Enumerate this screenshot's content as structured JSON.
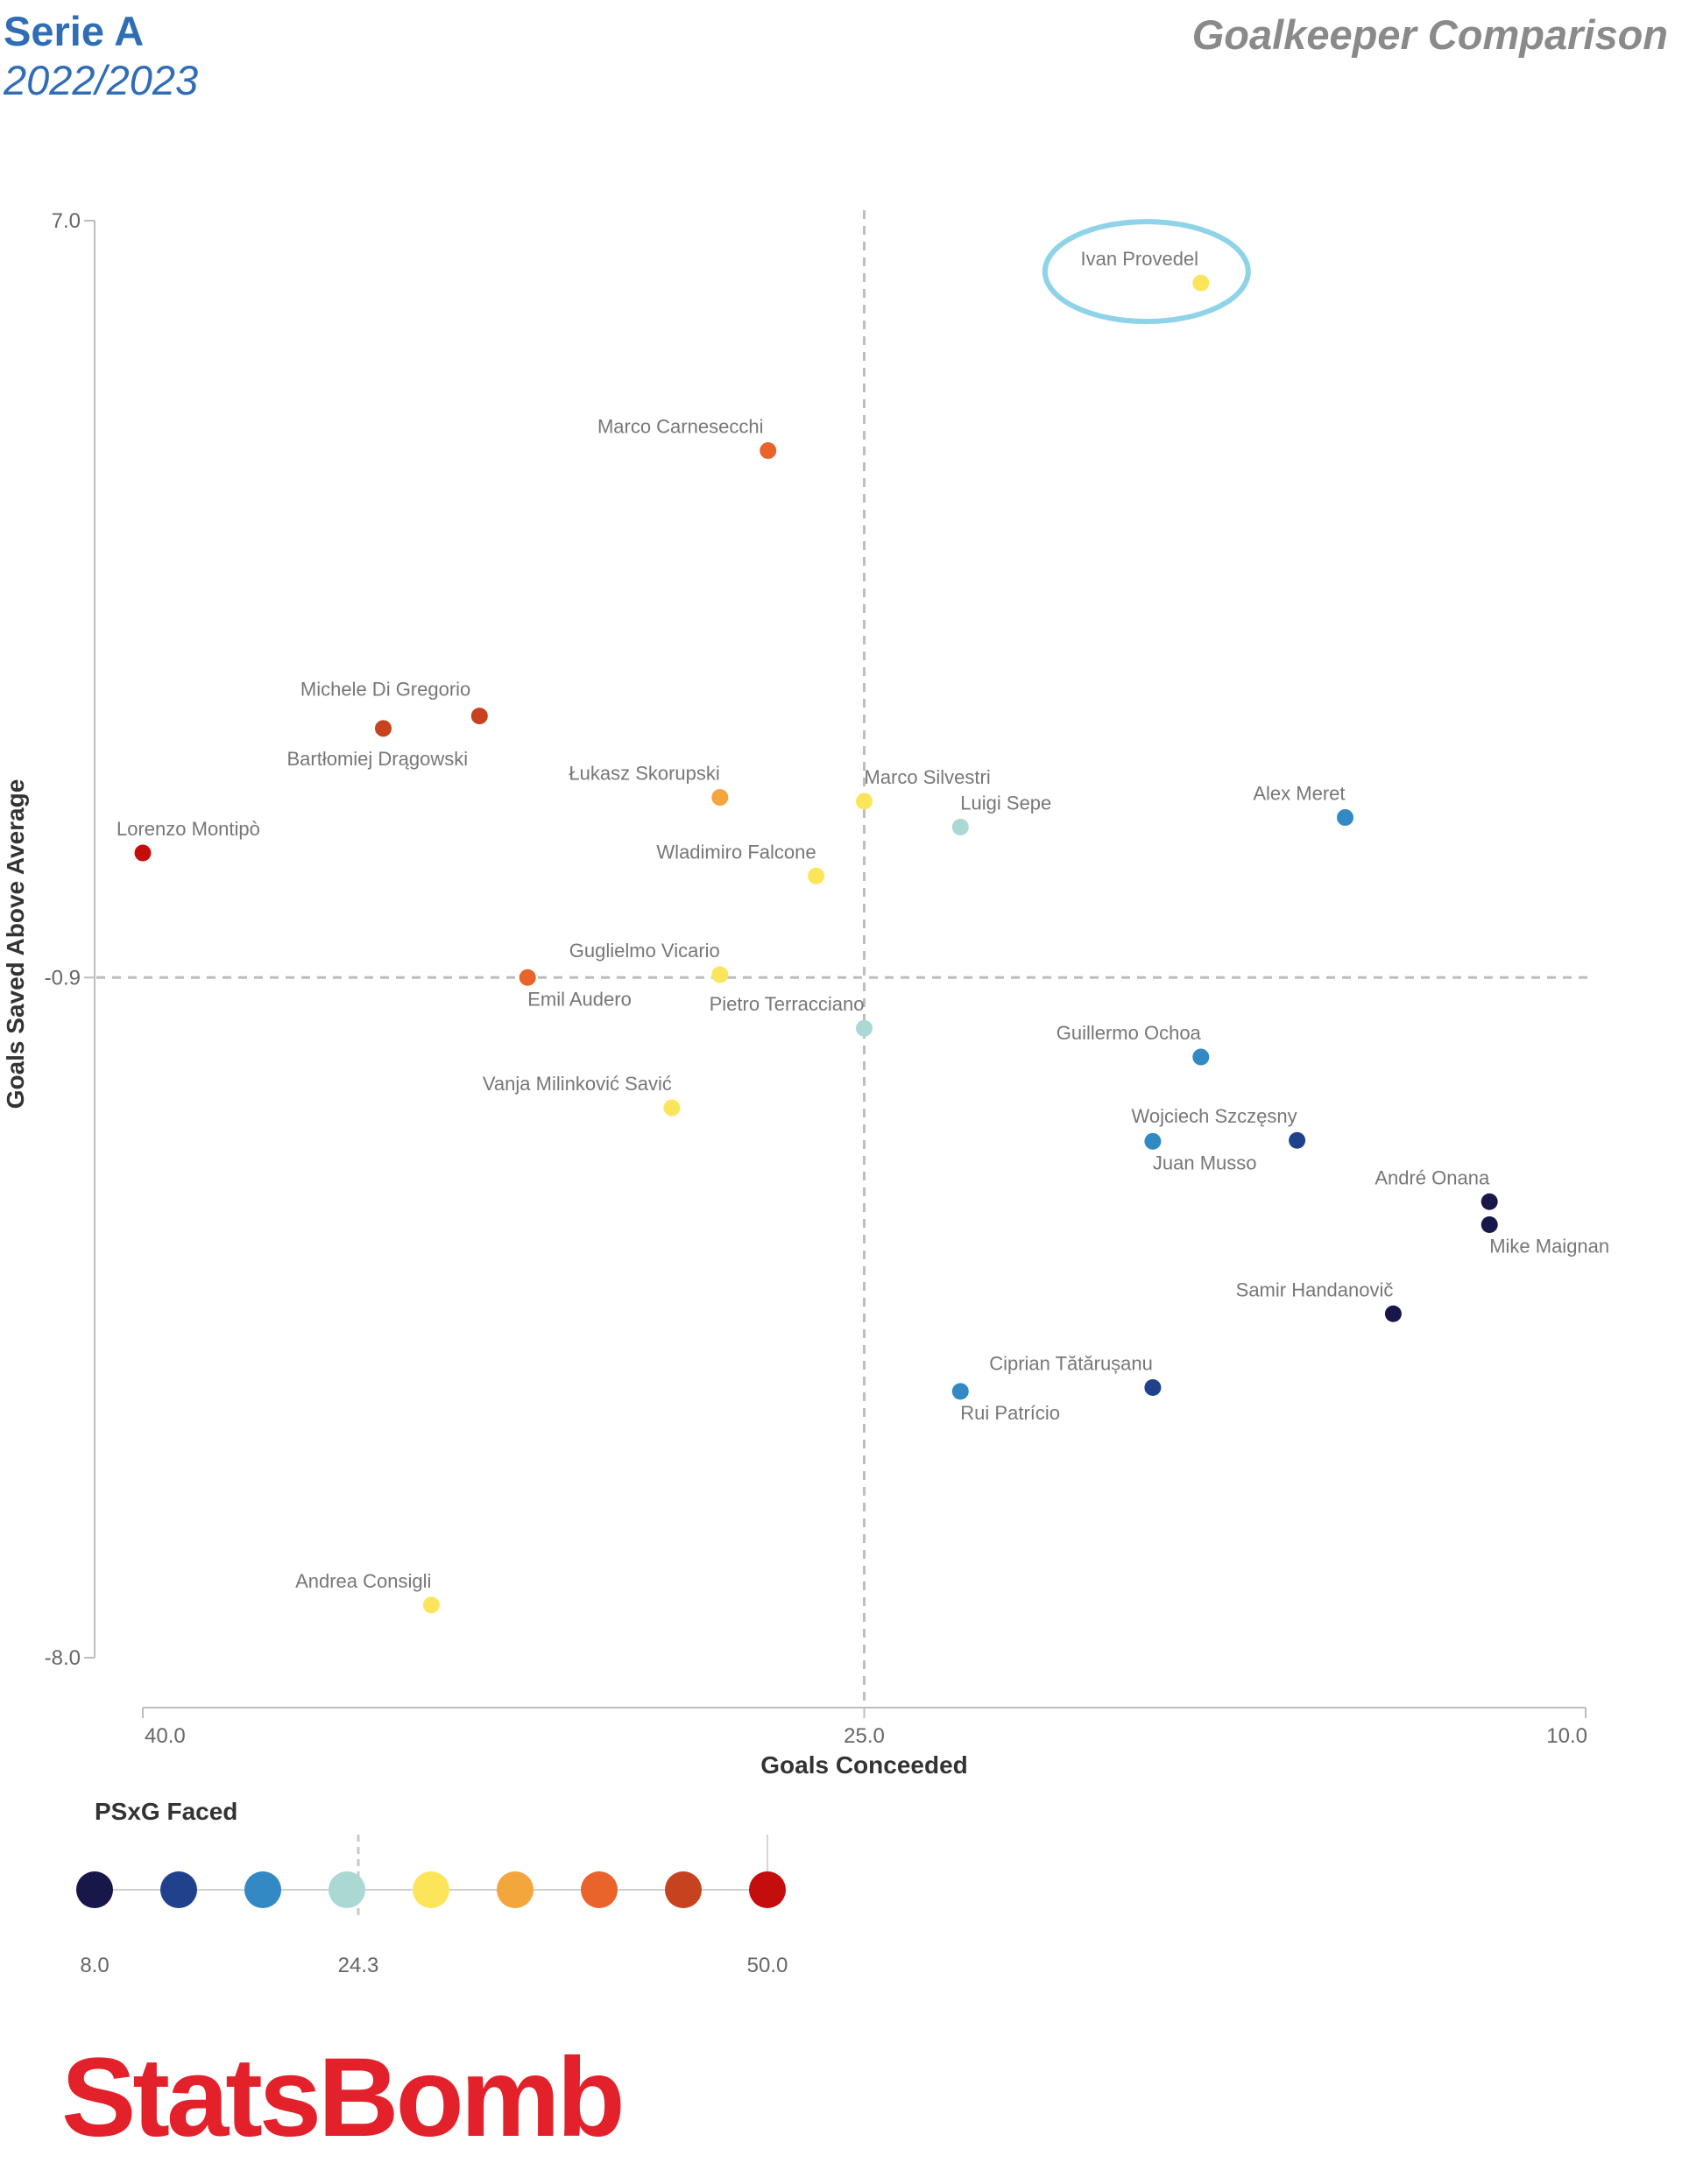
{
  "header": {
    "league": "Serie A",
    "season": "2022/2023",
    "title": "Goalkeeper Comparison"
  },
  "chart_data": {
    "type": "scatter",
    "title": "Goalkeeper Comparison",
    "xlabel": "Goals Conceeded",
    "ylabel": "Goals Saved Above Average",
    "xlim": [
      40.0,
      10.0
    ],
    "ylim": [
      -8.0,
      7.0
    ],
    "x_ticks": [
      "40.0",
      "25.0",
      "10.0"
    ],
    "y_ticks": [
      "7.0",
      "-0.9",
      "-8.0"
    ],
    "ref_lines": {
      "x": 25.0,
      "y": -0.9
    },
    "highlight": "Ivan Provedel",
    "points": [
      {
        "name": "Ivan Provedel",
        "x": 18.0,
        "y": 6.35,
        "psxg": 27
      },
      {
        "name": "Marco Carnesecchi",
        "x": 27.0,
        "y": 4.6,
        "psxg": 38
      },
      {
        "name": "Michele Di Gregorio",
        "x": 33.0,
        "y": 1.83,
        "psxg": 45
      },
      {
        "name": "Bartłomiej Drągowski",
        "x": 35.0,
        "y": 1.7,
        "psxg": 45
      },
      {
        "name": "Łukasz Skorupski",
        "x": 28.0,
        "y": 0.98,
        "psxg": 33
      },
      {
        "name": "Marco Silvestri",
        "x": 25.0,
        "y": 0.94,
        "psxg": 28
      },
      {
        "name": "Luigi Sepe",
        "x": 23.0,
        "y": 0.67,
        "psxg": 26
      },
      {
        "name": "Alex Meret",
        "x": 15.0,
        "y": 0.77,
        "psxg": 17
      },
      {
        "name": "Lorenzo Montipò",
        "x": 40.0,
        "y": 0.4,
        "psxg": 50
      },
      {
        "name": "Wladimiro Falcone",
        "x": 26.0,
        "y": 0.16,
        "psxg": 29
      },
      {
        "name": "Guglielmo Vicario",
        "x": 28.0,
        "y": -0.87,
        "psxg": 31
      },
      {
        "name": "Emil Audero",
        "x": 32.0,
        "y": -0.9,
        "psxg": 37
      },
      {
        "name": "Pietro Terracciano",
        "x": 25.0,
        "y": -1.43,
        "psxg": 25
      },
      {
        "name": "Guillermo Ochoa",
        "x": 18.0,
        "y": -1.73,
        "psxg": 19
      },
      {
        "name": "Vanja Milinković Savić",
        "x": 29.0,
        "y": -2.26,
        "psxg": 30
      },
      {
        "name": "Wojciech Szczęsny",
        "x": 16.0,
        "y": -2.6,
        "psxg": 14
      },
      {
        "name": "Juan Musso",
        "x": 19.0,
        "y": -2.61,
        "psxg": 18
      },
      {
        "name": "André Onana",
        "x": 12.0,
        "y": -3.24,
        "psxg": 8
      },
      {
        "name": "Mike Maignan",
        "x": 12.0,
        "y": -3.48,
        "psxg": 8
      },
      {
        "name": "Samir Handanovič",
        "x": 14.0,
        "y": -4.41,
        "psxg": 9
      },
      {
        "name": "Ciprian Tătărușanu",
        "x": 19.0,
        "y": -5.18,
        "psxg": 14
      },
      {
        "name": "Rui Patrício",
        "x": 23.0,
        "y": -5.22,
        "psxg": 20
      },
      {
        "name": "Andrea Consigli",
        "x": 34.0,
        "y": -7.45,
        "psxg": 29
      }
    ],
    "legend": {
      "title": "PSxG Faced",
      "min": "8.0",
      "mid": "24.3",
      "max": "50.0",
      "colors": [
        "#17174a",
        "#20418c",
        "#3389c4",
        "#a9d9d2",
        "#fde55b",
        "#f2a63c",
        "#e8642a",
        "#c7421f",
        "#c40d0d"
      ]
    }
  },
  "footer": {
    "logo": "StatsBomb"
  }
}
